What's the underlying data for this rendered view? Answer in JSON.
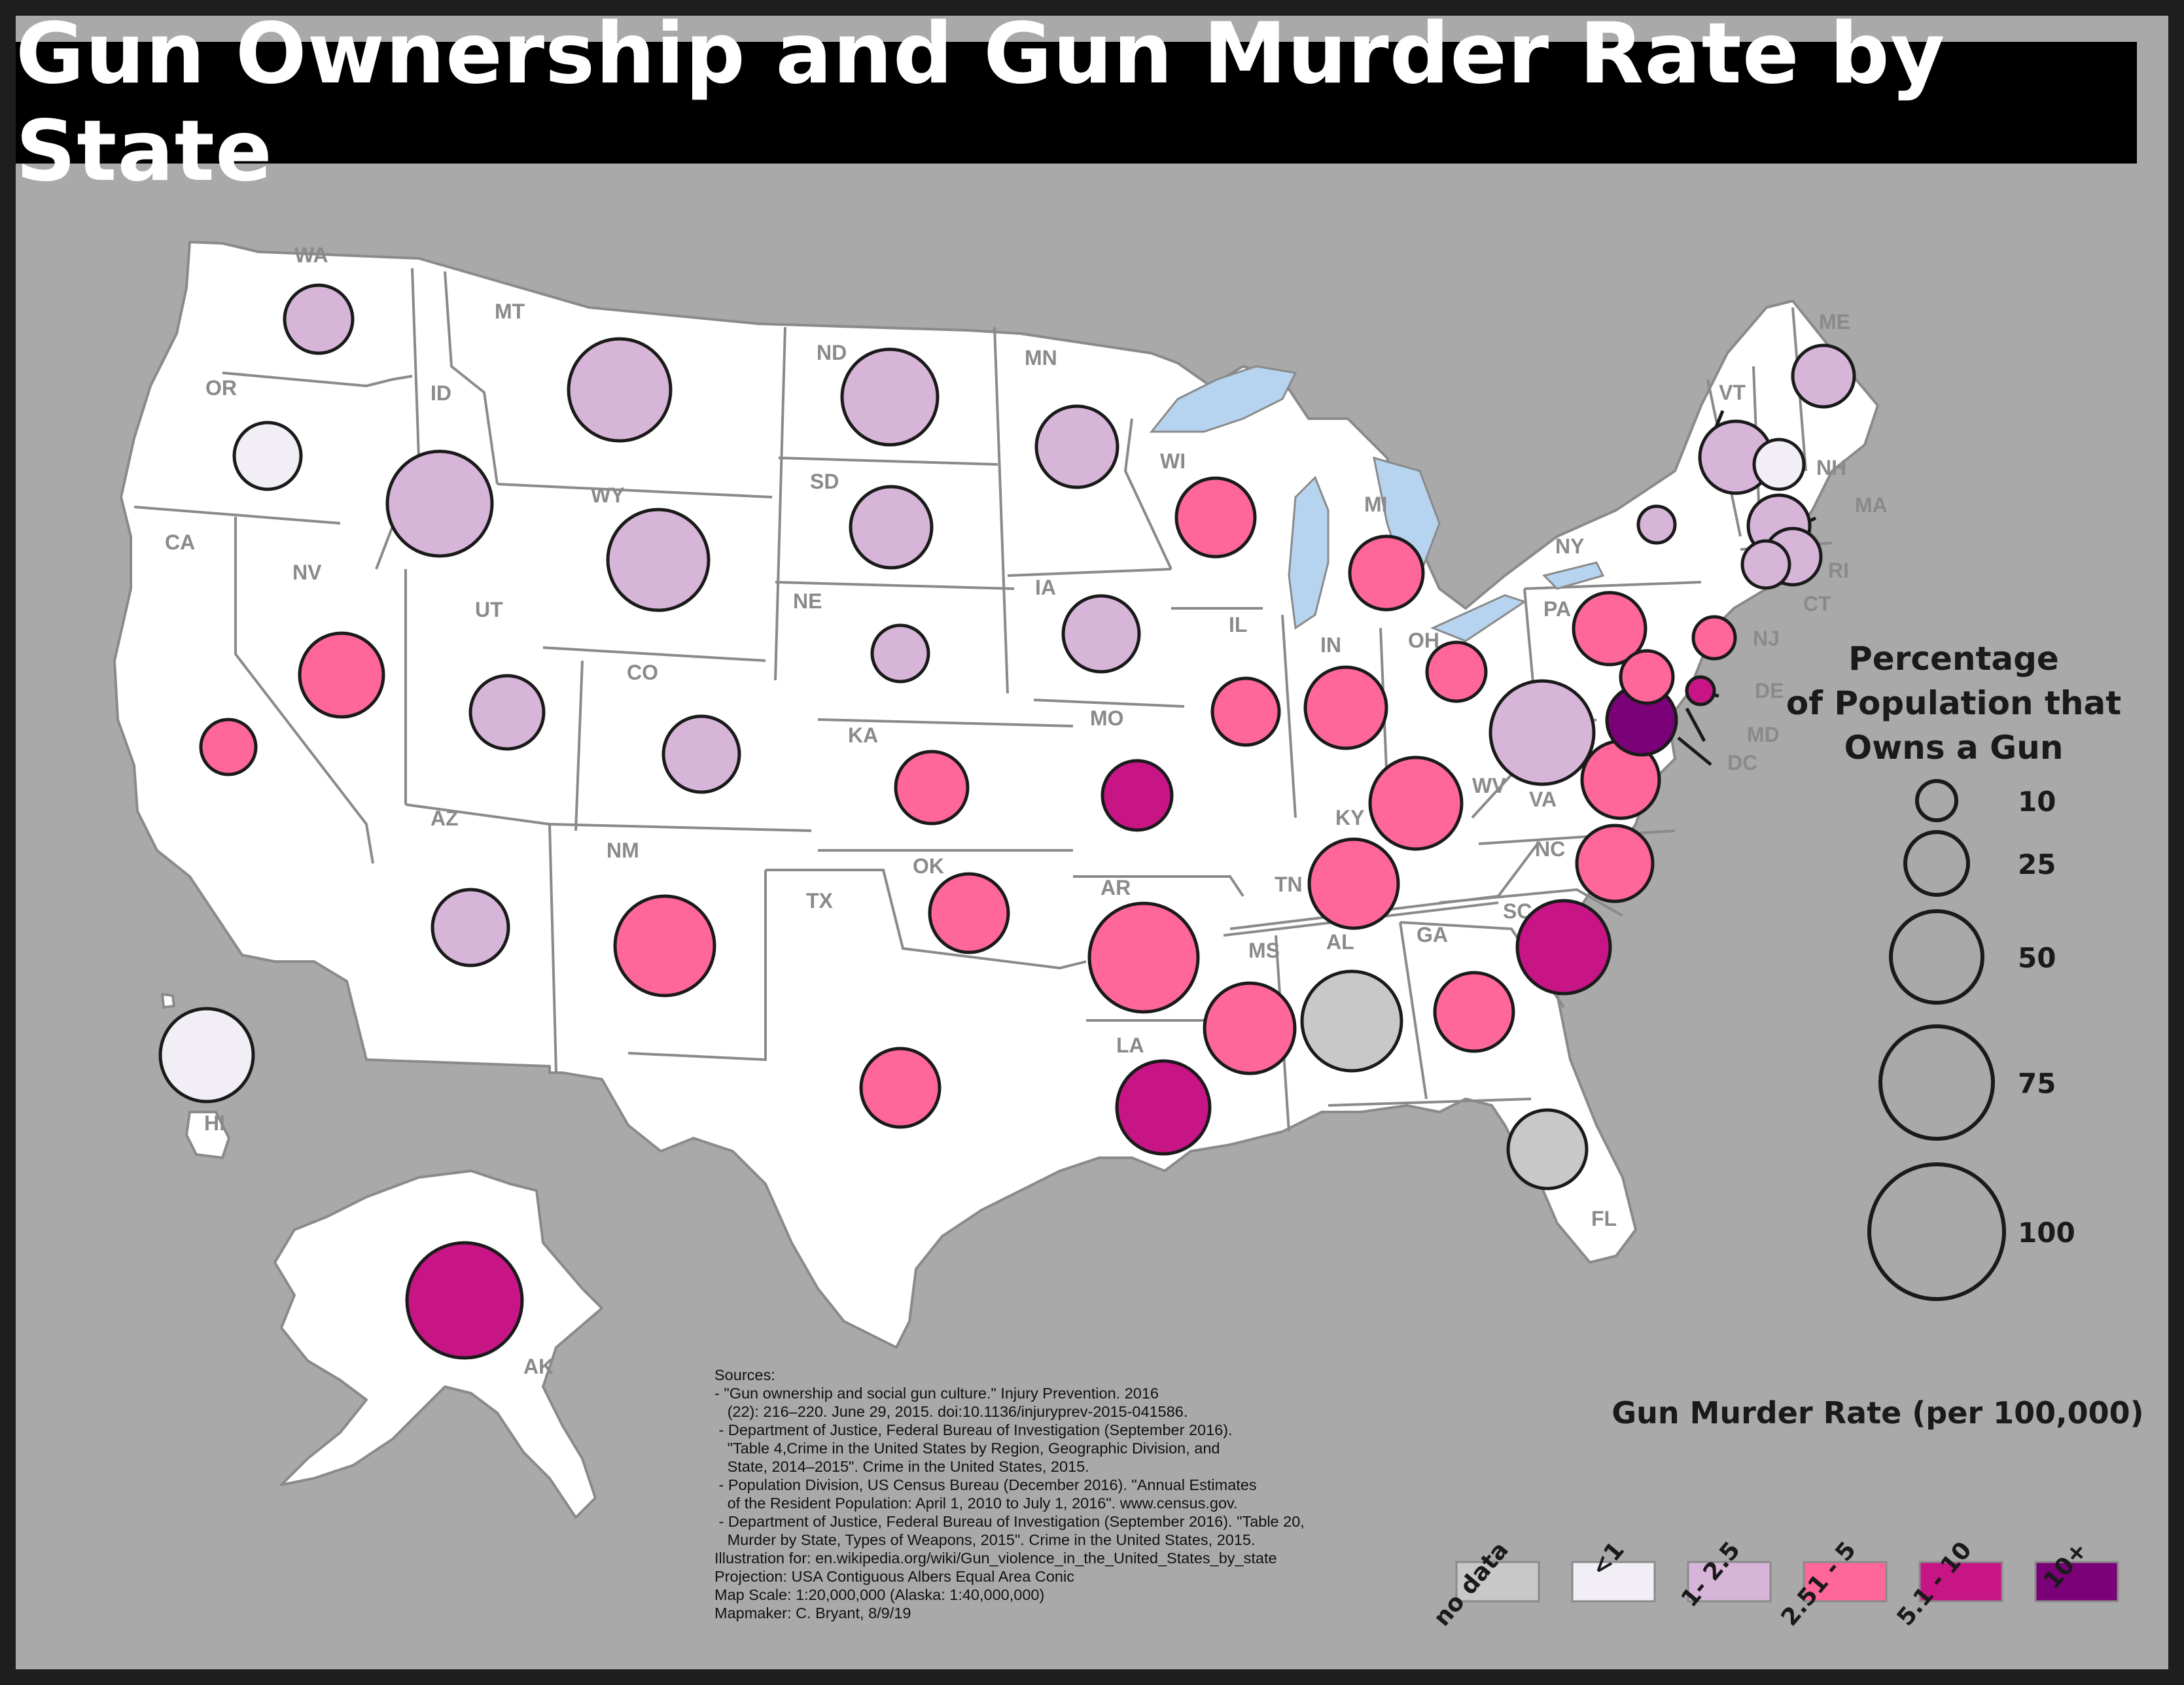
{
  "title": "Gun Ownership and Gun Murder Rate by State",
  "size_legend": {
    "heading": [
      "Percentage",
      "of Population that",
      "Owns a Gun"
    ],
    "values": [
      "10",
      "25",
      "50",
      "75",
      "100"
    ]
  },
  "color_legend": {
    "heading": "Gun Murder Rate (per 100,000)",
    "classes": [
      {
        "label": "no data",
        "color": "#c8c8c8"
      },
      {
        "label": "<1",
        "color": "#f1eef6"
      },
      {
        "label": "1- 2.5",
        "color": "#d7b5d8"
      },
      {
        "label": "2.51 - 5",
        "color": "#ff6699"
      },
      {
        "label": "5.1 - 10",
        "color": "#c71585"
      },
      {
        "label": "10+",
        "color": "#7a0177"
      }
    ]
  },
  "states": [
    {
      "abbr": "WA",
      "class": "1- 2.5"
    },
    {
      "abbr": "OR",
      "class": "<1"
    },
    {
      "abbr": "CA",
      "class": "2.51 - 5"
    },
    {
      "abbr": "ID",
      "class": "1- 2.5"
    },
    {
      "abbr": "NV",
      "class": "2.51 - 5"
    },
    {
      "abbr": "MT",
      "class": "1- 2.5"
    },
    {
      "abbr": "WY",
      "class": "1- 2.5"
    },
    {
      "abbr": "UT",
      "class": "1- 2.5"
    },
    {
      "abbr": "AZ",
      "class": "1- 2.5"
    },
    {
      "abbr": "CO",
      "class": "1- 2.5"
    },
    {
      "abbr": "NM",
      "class": "2.51 - 5"
    },
    {
      "abbr": "ND",
      "class": "1- 2.5"
    },
    {
      "abbr": "SD",
      "class": "1- 2.5"
    },
    {
      "abbr": "NE",
      "class": "1- 2.5"
    },
    {
      "abbr": "KA",
      "class": "2.51 - 5"
    },
    {
      "abbr": "OK",
      "class": "2.51 - 5"
    },
    {
      "abbr": "TX",
      "class": "2.51 - 5"
    },
    {
      "abbr": "MN",
      "class": "1- 2.5"
    },
    {
      "abbr": "IA",
      "class": "1- 2.5"
    },
    {
      "abbr": "MO",
      "class": "5.1 - 10"
    },
    {
      "abbr": "AR",
      "class": "2.51 - 5"
    },
    {
      "abbr": "LA",
      "class": "5.1 - 10"
    },
    {
      "abbr": "WI",
      "class": "2.51 - 5"
    },
    {
      "abbr": "IL",
      "class": "2.51 - 5"
    },
    {
      "abbr": "MI",
      "class": "2.51 - 5"
    },
    {
      "abbr": "IN",
      "class": "2.51 - 5"
    },
    {
      "abbr": "OH",
      "class": "2.51 - 5"
    },
    {
      "abbr": "KY",
      "class": "2.51 - 5"
    },
    {
      "abbr": "TN",
      "class": "2.51 - 5"
    },
    {
      "abbr": "MS",
      "class": "2.51 - 5"
    },
    {
      "abbr": "AL",
      "class": "no data"
    },
    {
      "abbr": "GA",
      "class": "2.51 - 5"
    },
    {
      "abbr": "FL",
      "class": "no data"
    },
    {
      "abbr": "SC",
      "class": "5.1 - 10"
    },
    {
      "abbr": "NC",
      "class": "2.51 - 5"
    },
    {
      "abbr": "VA",
      "class": "2.51 - 5"
    },
    {
      "abbr": "WV",
      "class": "1- 2.5"
    },
    {
      "abbr": "PA",
      "class": "2.51 - 5"
    },
    {
      "abbr": "NY",
      "class": "1- 2.5"
    },
    {
      "abbr": "NJ",
      "class": "2.51 - 5"
    },
    {
      "abbr": "DE",
      "class": "5.1 - 10"
    },
    {
      "abbr": "MD",
      "class": "2.51 - 5"
    },
    {
      "abbr": "DC",
      "class": "10+"
    },
    {
      "abbr": "VT",
      "class": "1- 2.5"
    },
    {
      "abbr": "NH",
      "class": "<1"
    },
    {
      "abbr": "ME",
      "class": "1- 2.5"
    },
    {
      "abbr": "MA",
      "class": "1- 2.5"
    },
    {
      "abbr": "RI",
      "class": "1- 2.5"
    },
    {
      "abbr": "CT",
      "class": "1- 2.5"
    },
    {
      "abbr": "AK",
      "class": "5.1 - 10"
    },
    {
      "abbr": "HI",
      "class": "<1"
    }
  ],
  "sources": [
    "Sources:",
    "- \"Gun ownership and social gun culture.\" Injury Prevention. 2016",
    "   (22): 216–220. June 29, 2015. doi:10.1136/injuryprev-2015-041586.",
    " - Department of Justice, Federal Bureau of Investigation (September 2016).",
    "   \"Table 4,Crime in the United States by Region, Geographic Division, and",
    "   State, 2014–2015\". Crime in the United States, 2015.",
    " - Population Division, US Census Bureau (December 2016). \"Annual Estimates",
    "   of the Resident Population: April 1, 2010 to July 1, 2016\". www.census.gov.",
    " - Department of Justice, Federal Bureau of Investigation (September 2016). \"Table 20,",
    "   Murder by State, Types of Weapons, 2015\". Crime in the United States, 2015.",
    "Illustration for: en.wikipedia.org/wiki/Gun_violence_in_the_United_States_by_state",
    "Projection: USA Contiguous Albers Equal Area Conic",
    "Map Scale: 1:20,000,000 (Alaska: 1:40,000,000)",
    "Mapmaker: C. Bryant, 8/9/19"
  ]
}
